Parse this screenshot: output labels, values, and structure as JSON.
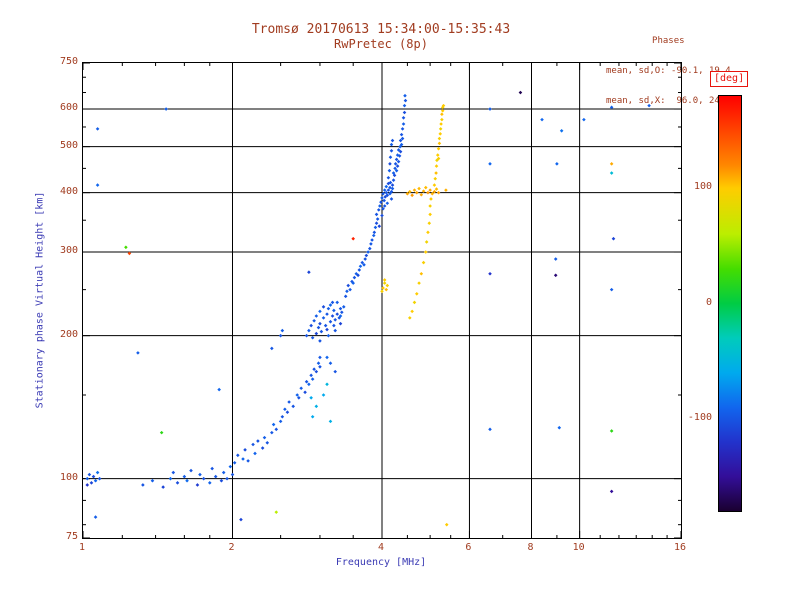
{
  "title": {
    "line1": "Tromsø 20170613 15:34:00-15:35:43",
    "line2": "RwPretec (8p)"
  },
  "stats": {
    "header": "Phases",
    "line_o": "mean, sd,O: -90.1, 19.4",
    "line_x": "mean, sd,X:  96.0, 24.2"
  },
  "colors": {
    "annotation": "#a13c20",
    "axis_title": "#3b3bb4",
    "deg": "#e8130c",
    "grid": "#000000",
    "background": "#ffffff"
  },
  "colorbar": {
    "label": "[deg]",
    "ticks": [
      100,
      0,
      -100
    ],
    "range": [
      -180,
      180
    ]
  },
  "chart_data": {
    "type": "scatter",
    "title": "Tromsø 20170613 15:34:00-15:35:43",
    "subtitle": "RwPretec (8p)",
    "xlabel": "Frequency [MHz]",
    "ylabel": "Stationary phase Virtual Height [km]",
    "xlim": [
      1,
      16
    ],
    "ylim": [
      75,
      750
    ],
    "x_scale": "log",
    "y_scale": "log",
    "x_ticks": [
      1,
      2,
      4,
      6,
      8,
      10,
      16
    ],
    "y_ticks": [
      75,
      100,
      200,
      300,
      400,
      500,
      600,
      750
    ],
    "x_minor_ticks": [
      1.2,
      1.4,
      1.6,
      1.8,
      2.5,
      3,
      3.5,
      4.5,
      5,
      5.5,
      7,
      9,
      11,
      12,
      13,
      14,
      15
    ],
    "y_minor_ticks": [
      80,
      90,
      150,
      250,
      350,
      450,
      550,
      650,
      700
    ],
    "x_gridlines": [
      2,
      4,
      6,
      8,
      10
    ],
    "y_gridlines": [
      100,
      200,
      300,
      400,
      500,
      600
    ],
    "grid": true,
    "legend": "colorbar-right",
    "colormap": [
      [
        180,
        "#ff0000"
      ],
      [
        120,
        "#ff8800"
      ],
      [
        100,
        "#ffcc00"
      ],
      [
        60,
        "#bbee00"
      ],
      [
        30,
        "#44dd00"
      ],
      [
        0,
        "#00cc44"
      ],
      [
        -30,
        "#00ccbb"
      ],
      [
        -60,
        "#00aaee"
      ],
      [
        -90,
        "#1166ee"
      ],
      [
        -120,
        "#2233cc"
      ],
      [
        -150,
        "#330e99"
      ],
      [
        -180,
        "#1a0030"
      ]
    ],
    "point_format": [
      "frequency_MHz",
      "virtual_height_km",
      "phase_deg"
    ],
    "points": [
      [
        1.02,
        100,
        -95
      ],
      [
        1.04,
        98,
        -110
      ],
      [
        1.03,
        102,
        -100
      ],
      [
        1.06,
        99,
        -90
      ],
      [
        1.05,
        101,
        -105
      ],
      [
        1.07,
        103,
        -85
      ],
      [
        1.02,
        97,
        -120
      ],
      [
        1.08,
        100,
        -100
      ],
      [
        1.06,
        83,
        -95
      ],
      [
        1.07,
        545,
        -95
      ],
      [
        1.07,
        415,
        -90
      ],
      [
        1.29,
        184,
        -95
      ],
      [
        1.22,
        307,
        30
      ],
      [
        1.24,
        298,
        150
      ],
      [
        1.44,
        125,
        20
      ],
      [
        1.47,
        600,
        -95
      ],
      [
        1.88,
        154,
        -90
      ],
      [
        1.32,
        97,
        -100
      ],
      [
        1.38,
        99,
        -95
      ],
      [
        1.45,
        96,
        -110
      ],
      [
        1.5,
        100,
        -90
      ],
      [
        1.52,
        103,
        -100
      ],
      [
        1.55,
        98,
        -105
      ],
      [
        1.6,
        101,
        -95
      ],
      [
        1.62,
        99,
        -88
      ],
      [
        1.65,
        104,
        -100
      ],
      [
        1.7,
        97,
        -115
      ],
      [
        1.72,
        102,
        -95
      ],
      [
        1.75,
        100,
        -102
      ],
      [
        1.8,
        98,
        -92
      ],
      [
        1.82,
        105,
        -100
      ],
      [
        1.85,
        101,
        -98
      ],
      [
        1.9,
        99,
        -105
      ],
      [
        1.92,
        103,
        -95
      ],
      [
        1.95,
        100,
        -100
      ],
      [
        1.98,
        106,
        -90
      ],
      [
        2.0,
        102,
        -100
      ],
      [
        2.08,
        82,
        -110
      ],
      [
        2.45,
        85,
        60
      ],
      [
        2.02,
        108,
        -95
      ],
      [
        2.05,
        112,
        -100
      ],
      [
        2.1,
        110,
        -90
      ],
      [
        2.12,
        115,
        -105
      ],
      [
        2.15,
        109,
        -98
      ],
      [
        2.2,
        118,
        -100
      ],
      [
        2.22,
        113,
        -92
      ],
      [
        2.25,
        120,
        -100
      ],
      [
        2.3,
        116,
        -105
      ],
      [
        2.32,
        122,
        -95
      ],
      [
        2.35,
        119,
        -100
      ],
      [
        2.4,
        125,
        -98
      ],
      [
        2.42,
        130,
        -90
      ],
      [
        2.45,
        127,
        -100
      ],
      [
        2.5,
        132,
        -95
      ],
      [
        2.52,
        135,
        -100
      ],
      [
        2.55,
        140,
        -95
      ],
      [
        2.58,
        138,
        -105
      ],
      [
        2.6,
        145,
        -98
      ],
      [
        2.65,
        142,
        -100
      ],
      [
        2.7,
        150,
        -92
      ],
      [
        2.72,
        148,
        -100
      ],
      [
        2.75,
        155,
        -95
      ],
      [
        2.8,
        152,
        -105
      ],
      [
        2.82,
        160,
        -100
      ],
      [
        2.85,
        158,
        -90
      ],
      [
        2.88,
        165,
        -100
      ],
      [
        2.9,
        162,
        -95
      ],
      [
        2.92,
        170,
        -100
      ],
      [
        2.95,
        168,
        -105
      ],
      [
        2.98,
        175,
        -95
      ],
      [
        3.0,
        172,
        -100
      ],
      [
        3.0,
        180,
        -98
      ],
      [
        2.9,
        135,
        -60
      ],
      [
        2.95,
        142,
        -55
      ],
      [
        3.05,
        150,
        -60
      ],
      [
        3.1,
        158,
        -50
      ],
      [
        2.88,
        148,
        -60
      ],
      [
        2.4,
        188,
        -98
      ],
      [
        2.5,
        200,
        -100
      ],
      [
        2.52,
        205,
        -95
      ],
      [
        2.85,
        272,
        -110
      ],
      [
        2.82,
        200,
        -100
      ],
      [
        2.85,
        205,
        -95
      ],
      [
        2.88,
        210,
        -105
      ],
      [
        2.9,
        198,
        -100
      ],
      [
        2.92,
        215,
        -98
      ],
      [
        2.95,
        202,
        -110
      ],
      [
        2.95,
        220,
        -95
      ],
      [
        2.98,
        208,
        -100
      ],
      [
        3.0,
        212,
        -105
      ],
      [
        3.0,
        225,
        -90
      ],
      [
        3.02,
        204,
        -100
      ],
      [
        3.05,
        218,
        -95
      ],
      [
        3.05,
        230,
        -105
      ],
      [
        3.08,
        210,
        -100
      ],
      [
        3.1,
        222,
        -98
      ],
      [
        3.1,
        206,
        -110
      ],
      [
        3.12,
        228,
        -95
      ],
      [
        3.15,
        214,
        -100
      ],
      [
        3.15,
        232,
        -90
      ],
      [
        3.18,
        220,
        -105
      ],
      [
        3.2,
        210,
        -100
      ],
      [
        3.2,
        226,
        -95
      ],
      [
        3.22,
        216,
        -100
      ],
      [
        3.25,
        222,
        -105
      ],
      [
        3.25,
        235,
        -95
      ],
      [
        3.28,
        218,
        -100
      ],
      [
        3.3,
        228,
        -98
      ],
      [
        3.3,
        212,
        -110
      ],
      [
        3.32,
        224,
        -100
      ],
      [
        3.35,
        230,
        -95
      ],
      [
        3.0,
        195,
        -100
      ],
      [
        3.12,
        200,
        -95
      ],
      [
        3.22,
        205,
        -100
      ],
      [
        3.3,
        220,
        -90
      ],
      [
        3.18,
        235,
        -100
      ],
      [
        3.15,
        175,
        -95
      ],
      [
        3.22,
        168,
        -100
      ],
      [
        3.1,
        180,
        -90
      ],
      [
        3.15,
        132,
        -55
      ],
      [
        3.38,
        242,
        -100
      ],
      [
        3.4,
        248,
        -95
      ],
      [
        3.42,
        255,
        -105
      ],
      [
        3.45,
        250,
        -98
      ],
      [
        3.48,
        260,
        -100
      ],
      [
        3.5,
        258,
        -92
      ],
      [
        3.52,
        265,
        -100
      ],
      [
        3.55,
        270,
        -95
      ],
      [
        3.58,
        268,
        -105
      ],
      [
        3.6,
        275,
        -100
      ],
      [
        3.62,
        280,
        -90
      ],
      [
        3.65,
        285,
        -100
      ],
      [
        3.68,
        282,
        -95
      ],
      [
        3.7,
        290,
        -100
      ],
      [
        3.72,
        295,
        -105
      ],
      [
        3.75,
        300,
        -95
      ],
      [
        3.78,
        305,
        -100
      ],
      [
        3.8,
        312,
        -98
      ],
      [
        3.82,
        318,
        -100
      ],
      [
        3.85,
        325,
        -95
      ],
      [
        3.5,
        320,
        165
      ],
      [
        3.86,
        330,
        -100
      ],
      [
        3.88,
        338,
        -95
      ],
      [
        3.9,
        345,
        -105
      ],
      [
        3.9,
        360,
        -100
      ],
      [
        3.92,
        352,
        -98
      ],
      [
        3.94,
        368,
        -100
      ],
      [
        3.95,
        340,
        -110
      ],
      [
        3.96,
        375,
        -95
      ],
      [
        3.98,
        382,
        -100
      ],
      [
        4.0,
        358,
        -105
      ],
      [
        4.0,
        390,
        -95
      ],
      [
        4.02,
        370,
        -100
      ],
      [
        4.02,
        398,
        -98
      ],
      [
        4.04,
        385,
        -100
      ],
      [
        4.05,
        405,
        -95
      ],
      [
        4.06,
        392,
        -105
      ],
      [
        4.08,
        400,
        -100
      ],
      [
        4.08,
        412,
        -90
      ],
      [
        4.1,
        395,
        -100
      ],
      [
        4.1,
        380,
        -95
      ],
      [
        4.12,
        405,
        -100
      ],
      [
        4.12,
        418,
        -105
      ],
      [
        4.15,
        398,
        -95
      ],
      [
        4.15,
        410,
        -100
      ],
      [
        4.18,
        402,
        -98
      ],
      [
        4.18,
        388,
        -100
      ],
      [
        4.2,
        408,
        -95
      ],
      [
        4.2,
        415,
        -105
      ],
      [
        4.16,
        420,
        -100
      ],
      [
        4.05,
        375,
        -100
      ],
      [
        4.12,
        430,
        -100
      ],
      [
        4.14,
        445,
        -95
      ],
      [
        4.15,
        460,
        -105
      ],
      [
        4.16,
        475,
        -98
      ],
      [
        4.18,
        490,
        -100
      ],
      [
        4.18,
        505,
        -95
      ],
      [
        4.2,
        515,
        -100
      ],
      [
        4.22,
        425,
        -100
      ],
      [
        4.22,
        440,
        -95
      ],
      [
        4.24,
        435,
        -105
      ],
      [
        4.25,
        450,
        -98
      ],
      [
        4.26,
        460,
        -100
      ],
      [
        4.28,
        445,
        -95
      ],
      [
        4.28,
        470,
        -100
      ],
      [
        4.3,
        455,
        -105
      ],
      [
        4.3,
        480,
        -95
      ],
      [
        4.32,
        465,
        -100
      ],
      [
        4.32,
        492,
        -98
      ],
      [
        4.34,
        478,
        -100
      ],
      [
        4.35,
        500,
        -95
      ],
      [
        4.36,
        488,
        -105
      ],
      [
        4.36,
        515,
        -100
      ],
      [
        4.38,
        505,
        -95
      ],
      [
        4.38,
        530,
        -100
      ],
      [
        4.4,
        520,
        -98
      ],
      [
        4.4,
        545,
        -100
      ],
      [
        4.42,
        558,
        -95
      ],
      [
        4.42,
        575,
        -100
      ],
      [
        4.44,
        590,
        -105
      ],
      [
        4.44,
        610,
        -95
      ],
      [
        4.46,
        625,
        -100
      ],
      [
        4.45,
        640,
        -95
      ],
      [
        4.0,
        248,
        95
      ],
      [
        4.02,
        252,
        100
      ],
      [
        4.05,
        258,
        90
      ],
      [
        4.08,
        250,
        105
      ],
      [
        4.1,
        255,
        96
      ],
      [
        4.05,
        262,
        100
      ],
      [
        4.55,
        218,
        96
      ],
      [
        4.6,
        225,
        100
      ],
      [
        4.65,
        235,
        92
      ],
      [
        4.7,
        245,
        100
      ],
      [
        4.75,
        258,
        96
      ],
      [
        4.8,
        270,
        104
      ],
      [
        4.85,
        285,
        96
      ],
      [
        4.9,
        300,
        100
      ],
      [
        4.92,
        315,
        92
      ],
      [
        4.95,
        330,
        100
      ],
      [
        4.98,
        345,
        96
      ],
      [
        5.0,
        360,
        100
      ],
      [
        5.0,
        375,
        95
      ],
      [
        5.02,
        388,
        100
      ],
      [
        4.5,
        398,
        110
      ],
      [
        4.55,
        402,
        105
      ],
      [
        4.6,
        395,
        115
      ],
      [
        4.65,
        405,
        108
      ],
      [
        4.7,
        400,
        112
      ],
      [
        4.75,
        408,
        105
      ],
      [
        4.8,
        396,
        110
      ],
      [
        4.85,
        403,
        108
      ],
      [
        4.9,
        410,
        105
      ],
      [
        4.95,
        400,
        115
      ],
      [
        5.0,
        405,
        110
      ],
      [
        5.05,
        398,
        108
      ],
      [
        5.1,
        402,
        110
      ],
      [
        5.15,
        407,
        105
      ],
      [
        5.2,
        400,
        112
      ],
      [
        5.1,
        415,
        100
      ],
      [
        5.12,
        428,
        96
      ],
      [
        5.14,
        440,
        104
      ],
      [
        5.15,
        455,
        100
      ],
      [
        5.16,
        468,
        92
      ],
      [
        5.18,
        480,
        100
      ],
      [
        5.2,
        472,
        96
      ],
      [
        5.2,
        495,
        100
      ],
      [
        5.22,
        508,
        104
      ],
      [
        5.22,
        520,
        96
      ],
      [
        5.24,
        532,
        100
      ],
      [
        5.25,
        545,
        92
      ],
      [
        5.26,
        558,
        100
      ],
      [
        5.28,
        570,
        96
      ],
      [
        5.28,
        585,
        104
      ],
      [
        5.3,
        595,
        100
      ],
      [
        5.3,
        605,
        96
      ],
      [
        5.32,
        610,
        100
      ],
      [
        5.38,
        405,
        108
      ],
      [
        5.4,
        80,
        100
      ],
      [
        6.6,
        600,
        -95
      ],
      [
        7.6,
        650,
        -170
      ],
      [
        8.4,
        570,
        -90
      ],
      [
        9.2,
        540,
        -85
      ],
      [
        10.2,
        570,
        -90
      ],
      [
        11.6,
        605,
        -95
      ],
      [
        13.8,
        610,
        -95
      ],
      [
        6.6,
        460,
        -90
      ],
      [
        9.0,
        460,
        -90
      ],
      [
        11.6,
        460,
        110
      ],
      [
        11.6,
        440,
        -45
      ],
      [
        6.6,
        270,
        -120
      ],
      [
        8.95,
        290,
        -95
      ],
      [
        8.95,
        268,
        -160
      ],
      [
        11.7,
        320,
        -110
      ],
      [
        11.6,
        250,
        -95
      ],
      [
        11.6,
        126,
        20
      ],
      [
        9.1,
        128,
        -90
      ],
      [
        6.6,
        127,
        -95
      ],
      [
        11.6,
        94,
        -150
      ]
    ]
  }
}
